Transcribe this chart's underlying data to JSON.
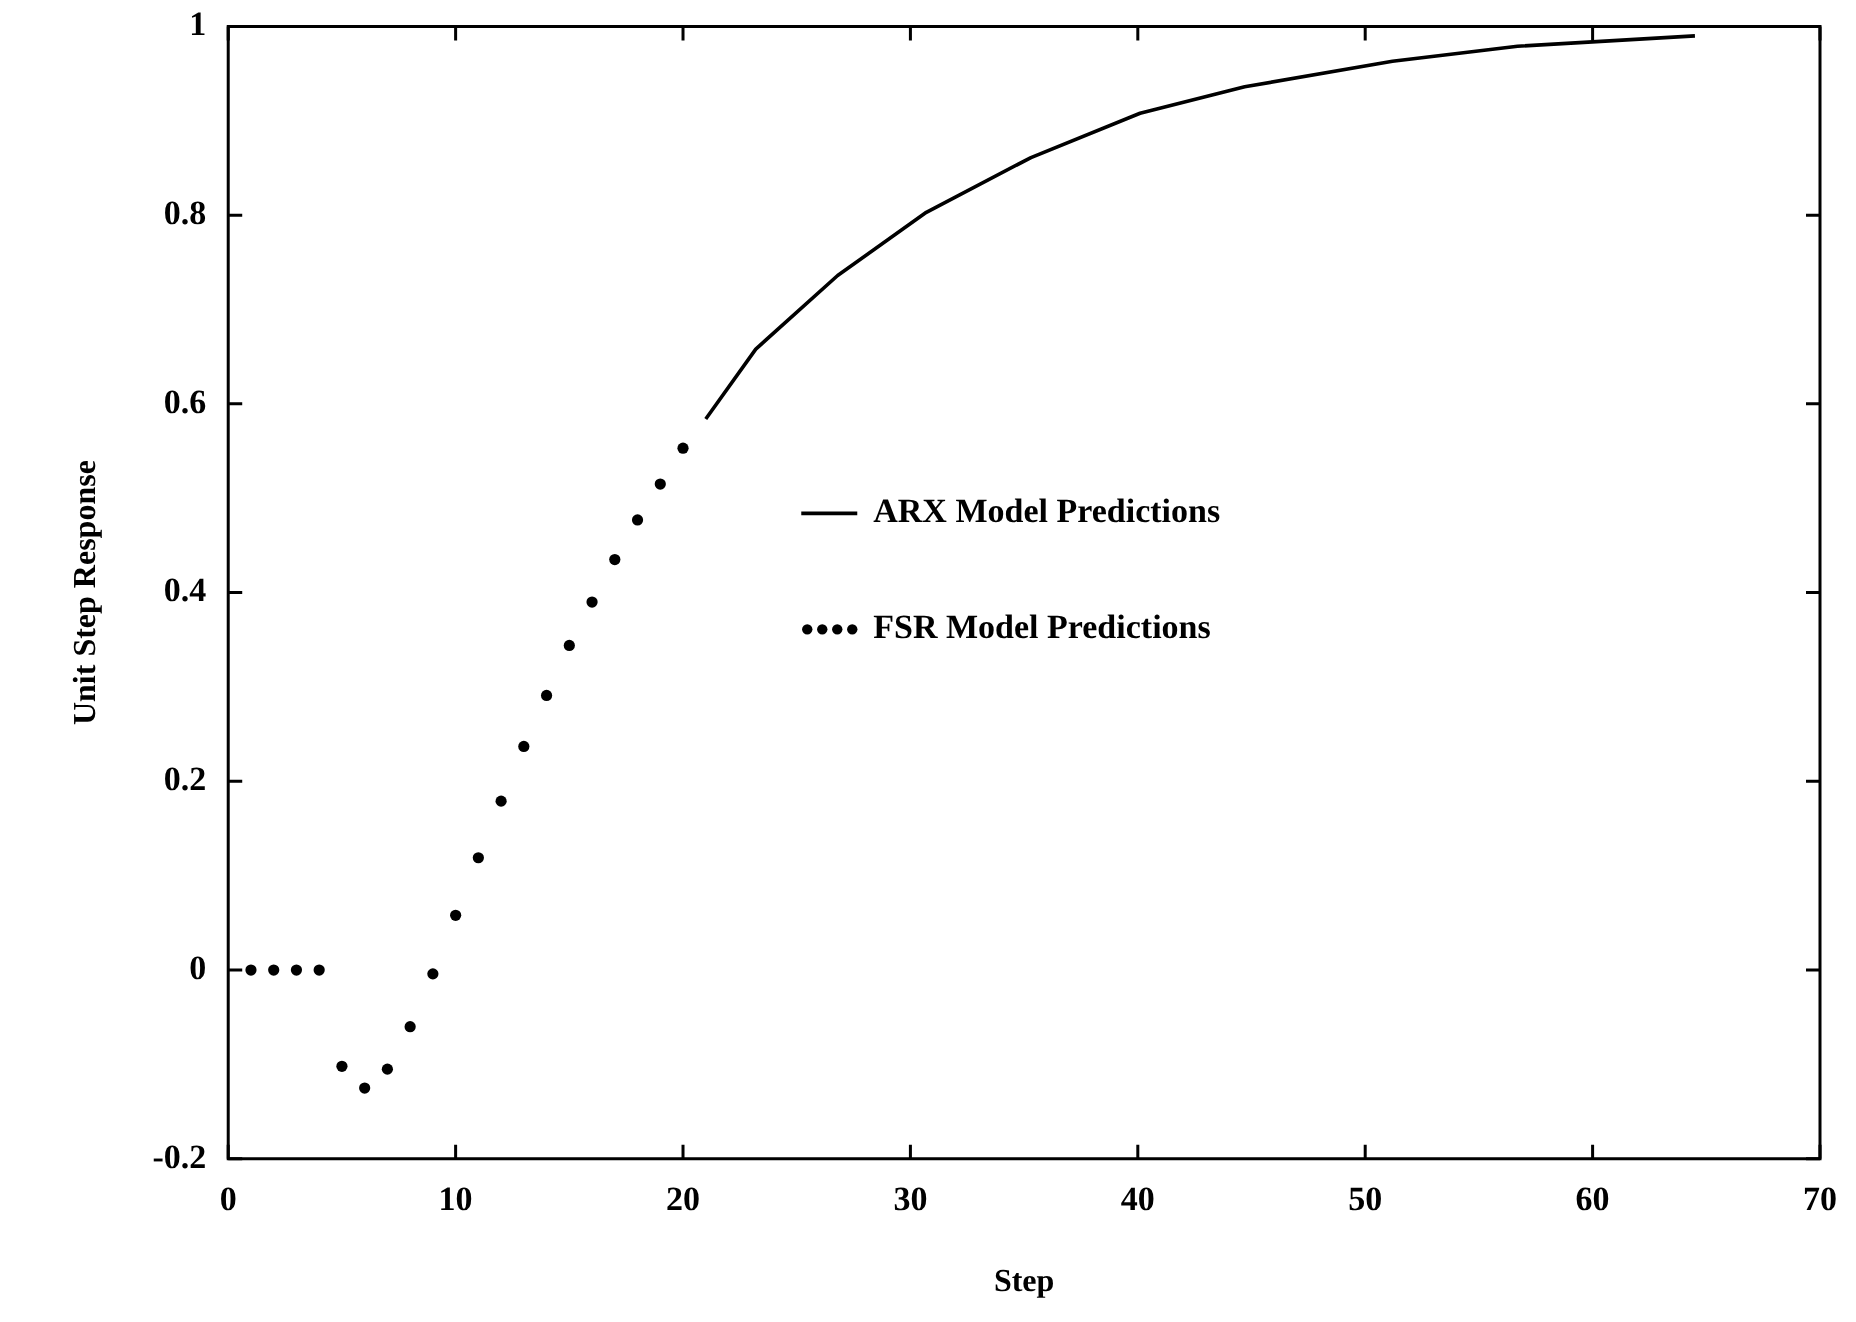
{
  "chart_data": {
    "type": "line",
    "xlabel": "Step",
    "ylabel": "Unit Step Response",
    "xlim": [
      0,
      70
    ],
    "xticks": [
      0,
      10,
      20,
      30,
      40,
      50,
      60,
      70
    ],
    "ylim": [
      -0.2,
      1
    ],
    "yticks": [
      -0.2,
      0,
      0.2,
      0.4,
      0.6,
      0.8,
      1
    ],
    "legend": "center",
    "grid": false,
    "series": [
      {
        "name": "ARX Model Predictions",
        "color": "#000000",
        "marker": "none",
        "line_style": "solid",
        "x": [
          21,
          23.2,
          26.8,
          30.7,
          35.3,
          40.1,
          44.7,
          51.2,
          56.7,
          64.5
        ],
        "values": [
          0.584,
          0.658,
          0.736,
          0.803,
          0.861,
          0.908,
          0.936,
          0.963,
          0.979,
          0.99
        ]
      },
      {
        "name": "FSR Model Predictions",
        "type": "scatter",
        "color": "#000000",
        "marker": "circle",
        "x": [
          1,
          2,
          3,
          4,
          5,
          6,
          7,
          8,
          9,
          10,
          11,
          12,
          13,
          14,
          15,
          16,
          17,
          18,
          19,
          20
        ],
        "values": [
          0,
          0,
          0,
          0,
          -0.102,
          -0.125,
          -0.105,
          -0.06,
          -0.004,
          0.058,
          0.119,
          0.179,
          0.237,
          0.291,
          0.344,
          0.39,
          0.435,
          0.477,
          0.515,
          0.553
        ]
      }
    ]
  }
}
